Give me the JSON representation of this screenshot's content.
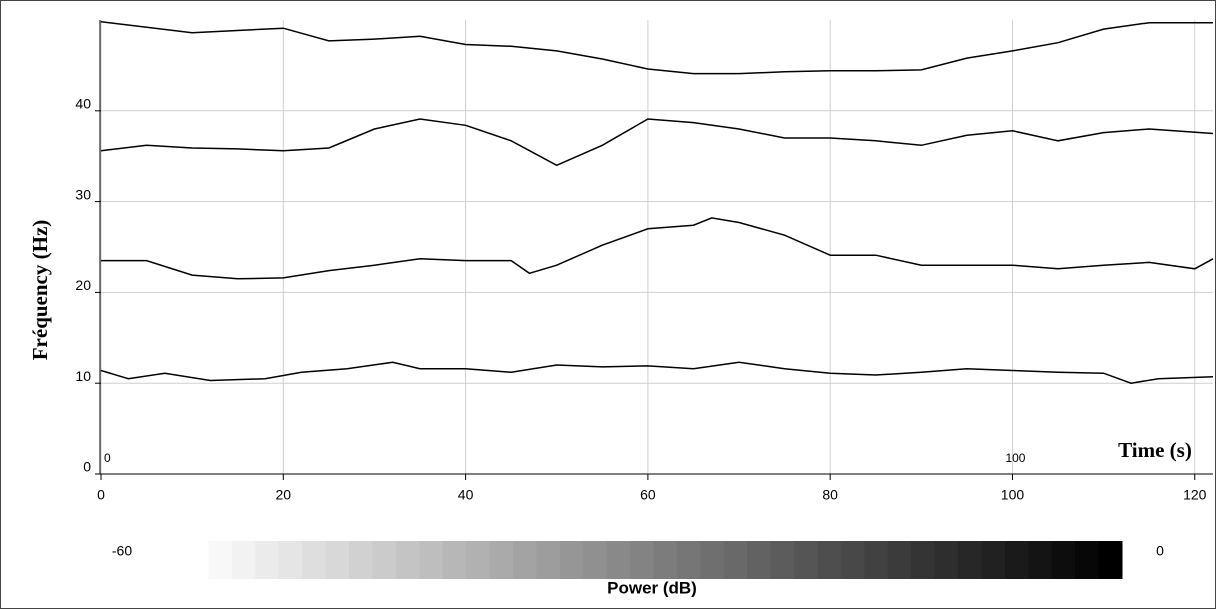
{
  "chart_data": {
    "type": "line",
    "y_label": "Fréquency (Hz)",
    "x_label": "Time (s)",
    "xlim": [
      0,
      122
    ],
    "ylim": [
      0,
      50
    ],
    "xticks": [
      0,
      20,
      40,
      60,
      80,
      100,
      120
    ],
    "yticks": [
      0,
      10,
      20,
      30,
      40
    ],
    "inner_xticks": [
      0,
      100
    ],
    "grid": true,
    "series": [
      {
        "color": "#000000",
        "x": [
          0,
          10,
          20,
          25,
          30,
          35,
          40,
          45,
          50,
          55,
          60,
          65,
          70,
          75,
          80,
          85,
          90,
          95,
          100,
          105,
          110,
          115,
          122
        ],
        "values": [
          49.8,
          48.6,
          49.1,
          47.7,
          47.9,
          48.2,
          47.3,
          47.1,
          46.6,
          45.7,
          44.6,
          44.1,
          44.1,
          44.3,
          44.4,
          44.4,
          44.5,
          45.8,
          46.6,
          47.5,
          49.0,
          49.7,
          49.7
        ]
      },
      {
        "color": "#000000",
        "x": [
          0,
          5,
          10,
          15,
          20,
          25,
          30,
          35,
          40,
          45,
          50,
          55,
          60,
          65,
          70,
          75,
          80,
          85,
          90,
          95,
          100,
          105,
          110,
          115,
          122
        ],
        "values": [
          35.6,
          36.2,
          35.9,
          35.8,
          35.6,
          35.9,
          38.0,
          39.1,
          38.4,
          36.7,
          34.0,
          36.2,
          39.1,
          38.7,
          38.0,
          37.0,
          37.0,
          36.7,
          36.2,
          37.3,
          37.8,
          36.7,
          37.6,
          38.0,
          37.5
        ]
      },
      {
        "color": "#000000",
        "x": [
          0,
          5,
          10,
          15,
          20,
          25,
          30,
          35,
          40,
          45,
          47,
          50,
          55,
          60,
          65,
          67,
          70,
          75,
          80,
          85,
          90,
          95,
          100,
          105,
          110,
          115,
          120,
          122
        ],
        "values": [
          23.5,
          23.5,
          21.9,
          21.5,
          21.6,
          22.4,
          23.0,
          23.7,
          23.5,
          23.5,
          22.1,
          23.0,
          25.2,
          27.0,
          27.4,
          28.2,
          27.7,
          26.3,
          24.1,
          24.1,
          23.0,
          23.0,
          23.0,
          22.6,
          23.0,
          23.3,
          22.6,
          23.7
        ]
      },
      {
        "color": "#000000",
        "x": [
          0,
          3,
          7,
          12,
          18,
          22,
          27,
          32,
          35,
          40,
          45,
          50,
          55,
          60,
          65,
          70,
          75,
          80,
          85,
          90,
          95,
          100,
          105,
          110,
          113,
          116,
          122
        ],
        "values": [
          11.4,
          10.5,
          11.1,
          10.3,
          10.5,
          11.2,
          11.6,
          12.3,
          11.6,
          11.6,
          11.2,
          12.0,
          11.8,
          11.9,
          11.6,
          12.3,
          11.6,
          11.1,
          10.9,
          11.2,
          11.6,
          11.4,
          11.2,
          11.1,
          10.0,
          10.5,
          10.7
        ]
      }
    ],
    "colorbar": {
      "label": "Power (dB)",
      "lim": [
        -60,
        0
      ],
      "ticks": [
        -60,
        0
      ],
      "colors": [
        "#ffffff",
        "#000000"
      ]
    }
  }
}
